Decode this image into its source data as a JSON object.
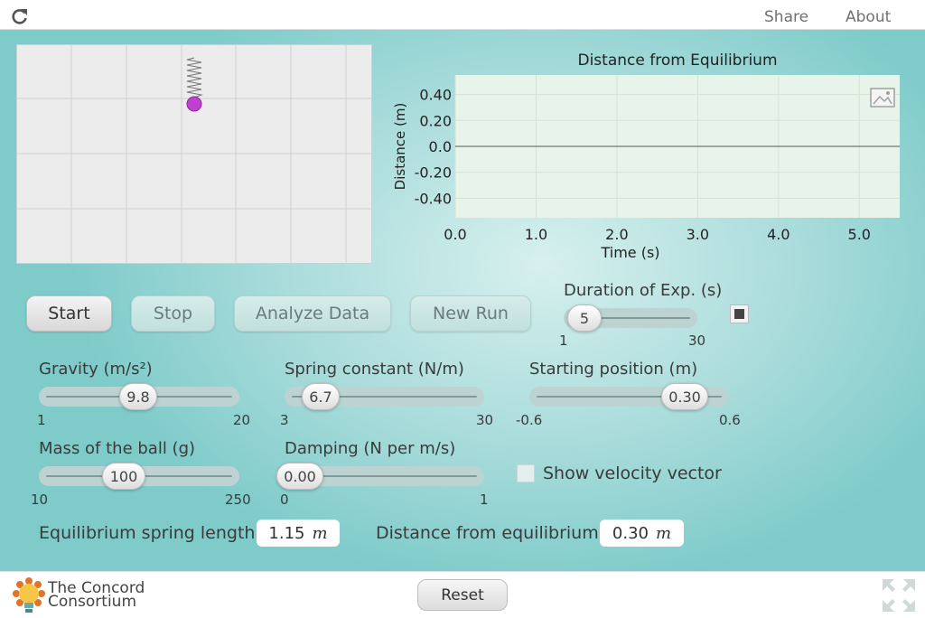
{
  "topbar": {
    "share_label": "Share",
    "about_label": "About"
  },
  "icons": {
    "reload": "reload-icon",
    "image": "image-icon",
    "fullscreen": "fullscreen-icon",
    "logo": "concord-logo-icon",
    "stop_square": "stop-square-icon"
  },
  "colors": {
    "ball": "#c040d0",
    "background": "#a9dcdb"
  },
  "chart_data": {
    "type": "line",
    "title": "Distance from Equilibrium",
    "xlabel": "Time (s)",
    "ylabel": "Distance (m)",
    "xlim": [
      0,
      5.5
    ],
    "ylim": [
      -0.55,
      0.55
    ],
    "xticks": [
      "0.0",
      "1.0",
      "2.0",
      "3.0",
      "4.0",
      "5.0"
    ],
    "yticks": [
      "0.40",
      "0.20",
      "0.0",
      "-0.20",
      "-0.40"
    ],
    "ytick_values": [
      0.4,
      0.2,
      0.0,
      -0.2,
      -0.4
    ],
    "xtick_values": [
      0,
      1,
      2,
      3,
      4,
      5
    ],
    "series": [],
    "grid": true
  },
  "controls": {
    "start_label": "Start",
    "stop_label": "Stop",
    "analyze_label": "Analyze Data",
    "new_run_label": "New Run"
  },
  "duration": {
    "label": "Duration of Exp. (s)",
    "value": "5",
    "min": "1",
    "max": "30",
    "level": 0.138
  },
  "gravity": {
    "label": "Gravity (m/s²)",
    "value": "9.8",
    "min": "1",
    "max": "20",
    "level": 0.463
  },
  "spring_constant": {
    "label": "Spring constant (N/m)",
    "value": "6.7",
    "min": "3",
    "max": "30",
    "level": 0.137
  },
  "starting_position": {
    "label": "Starting position (m)",
    "value": "0.30",
    "min": "-0.6",
    "max": "0.6",
    "level": 0.75
  },
  "mass": {
    "label": "Mass of the ball (g)",
    "value": "100",
    "min": "10",
    "max": "250",
    "level": 0.375
  },
  "damping": {
    "label": "Damping (N per m/s)",
    "value": "0.00",
    "min": "0",
    "max": "1",
    "level": 0.0
  },
  "velocity_vector": {
    "label": "Show velocity vector",
    "checked": false
  },
  "readouts": {
    "equilibrium_label": "Equilibrium spring length",
    "equilibrium_value": "1.15",
    "equilibrium_unit": "m",
    "distance_label": "Distance from equilibrium",
    "distance_value": "0.30",
    "distance_unit": "m"
  },
  "footer": {
    "logo_line1": "The Concord",
    "logo_line2": "Consortium",
    "reset_label": "Reset"
  }
}
